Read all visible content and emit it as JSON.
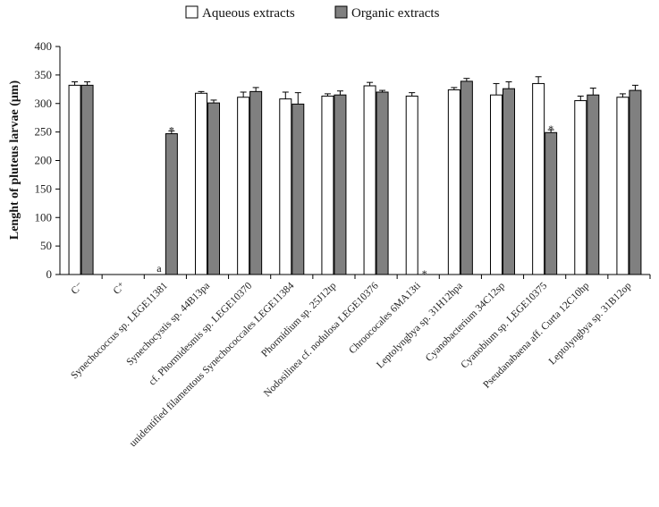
{
  "chart_data": {
    "type": "bar",
    "ylabel": "Lenght of pluteus larvae (μm)",
    "ylim": [
      0,
      400
    ],
    "yticks": [
      "0",
      "50",
      "100",
      "150",
      "200",
      "250",
      "300",
      "350",
      "400"
    ],
    "grid": false,
    "legend_position": "top-center",
    "categories": [
      "C⁻",
      "C⁺",
      "Synechococcus sp. LEGE11381",
      "Synechocystis sp. 44B13pa",
      "cf. Phormidesmis sp. LEGE10370",
      "unidentified filamentous Synechococcales LEGE11384",
      "Phormidium sp. 25J12tp",
      "Nodosilinea cf. nodulosa LEGE10376",
      "Chroococales 6MA13ti",
      "Leptolyngbya sp. 31H12hpa",
      "Cyanobacterium 34C12sp",
      "Cyanobium sp. LEGE10375",
      "Pseudanabaena aff. Curta 12C10hp",
      "Leptolyngbya sp. 31B12op"
    ],
    "series": [
      {
        "name": "Aqueous extracts",
        "color": "#ffffff",
        "values": [
          332,
          null,
          null,
          318,
          311,
          308,
          313,
          331,
          313,
          324,
          315,
          335,
          305,
          311
        ],
        "errors": [
          6,
          null,
          null,
          3,
          9,
          12,
          4,
          6,
          6,
          4,
          20,
          12,
          8,
          6
        ]
      },
      {
        "name": "Organic extracts",
        "color": "#808080",
        "values": [
          332,
          null,
          247,
          301,
          321,
          299,
          315,
          320,
          null,
          339,
          326,
          249,
          315,
          323
        ],
        "errors": [
          6,
          null,
          5,
          5,
          7,
          20,
          7,
          3,
          null,
          5,
          12,
          5,
          12,
          9
        ]
      }
    ],
    "annotations": [
      {
        "category": "Synechococcus sp. LEGE11381",
        "series": "Aqueous extracts",
        "text": "a"
      },
      {
        "category": "Synechococcus sp. LEGE11381",
        "series": "Organic extracts",
        "text": "*"
      },
      {
        "category": "Chroococales 6MA13ti",
        "series": "Organic extracts",
        "text": "*"
      },
      {
        "category": "Cyanobium sp. LEGE10375",
        "series": "Organic extracts",
        "text": "*"
      }
    ]
  }
}
